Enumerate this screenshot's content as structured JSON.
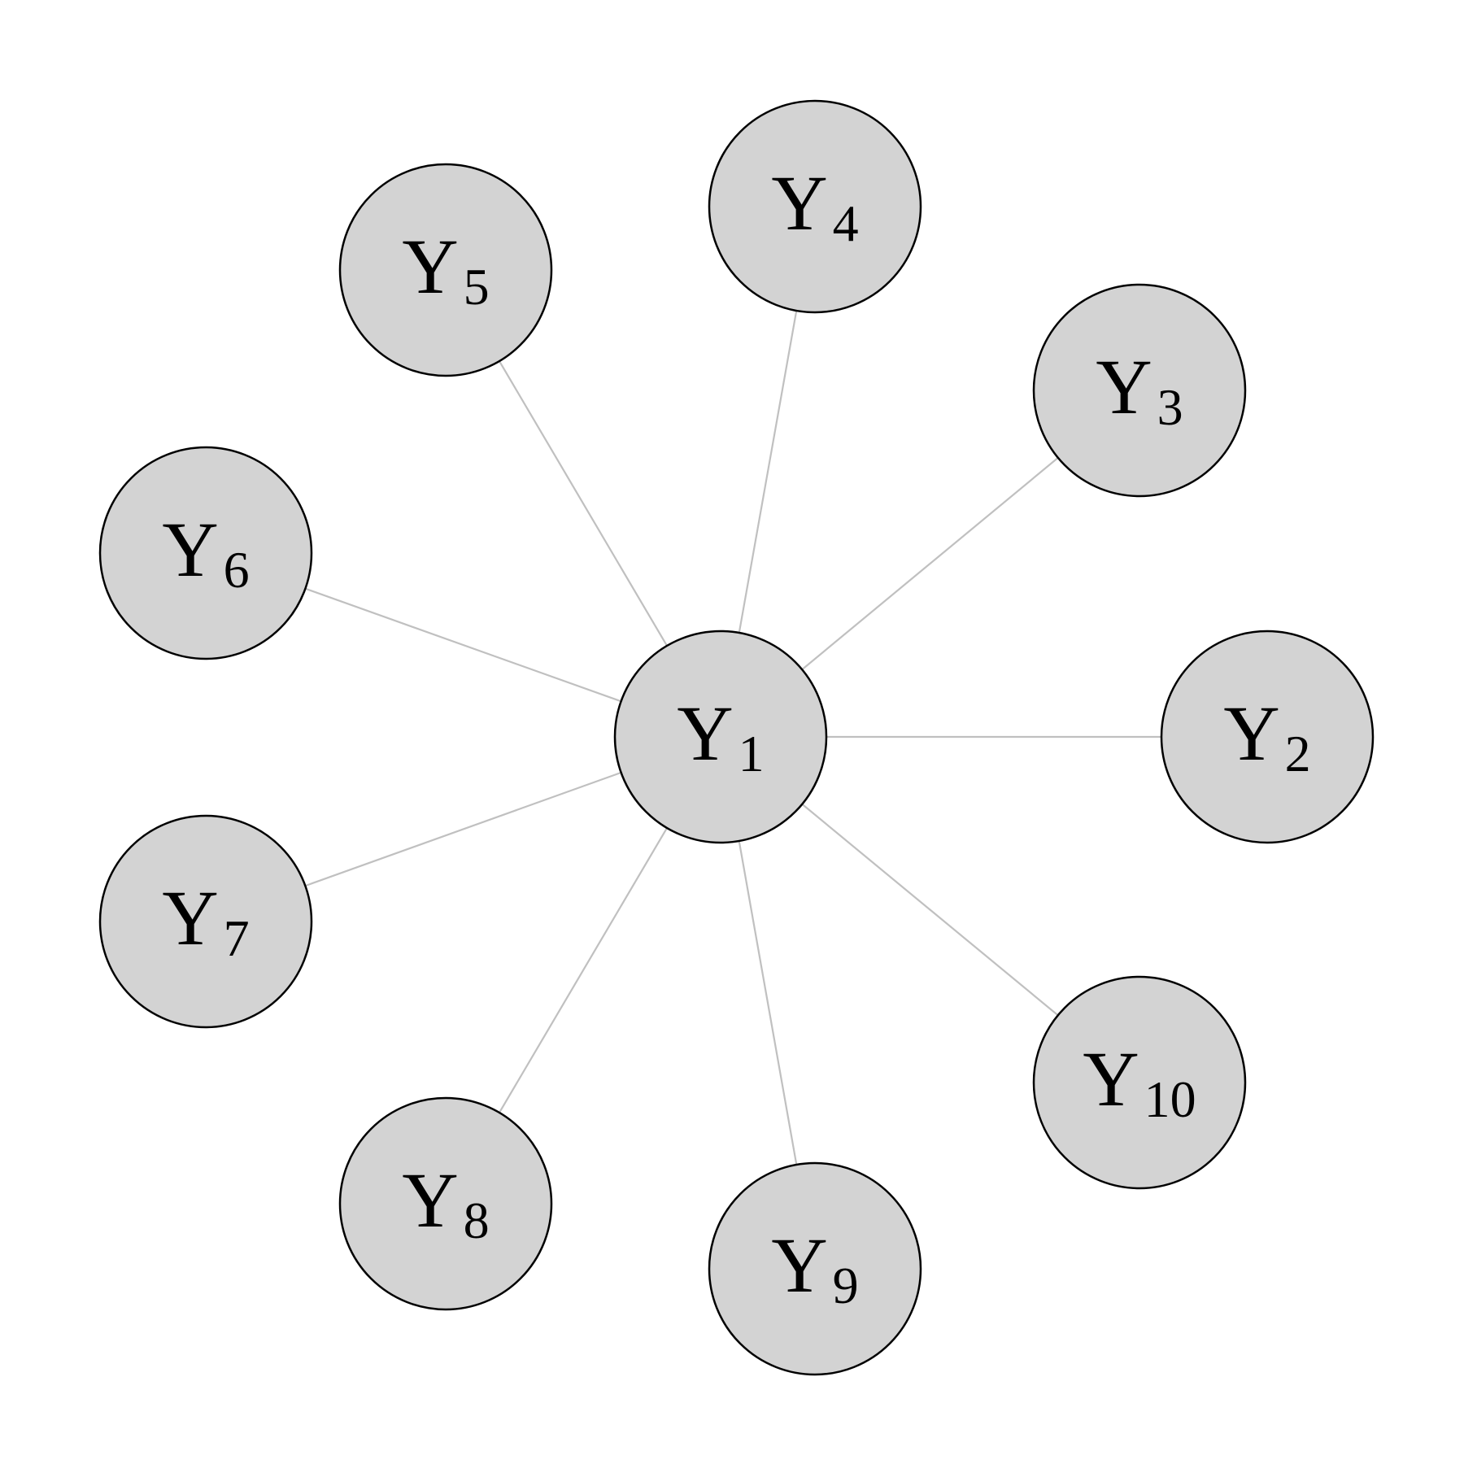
{
  "colors": {
    "node_fill": "#d3d3d3",
    "node_stroke": "#000000",
    "edge": "#c0c0c0",
    "background": "#ffffff"
  },
  "nodes": [
    {
      "id": "Y1",
      "letter": "Y",
      "subscript": "1"
    },
    {
      "id": "Y2",
      "letter": "Y",
      "subscript": "2"
    },
    {
      "id": "Y3",
      "letter": "Y",
      "subscript": "3"
    },
    {
      "id": "Y4",
      "letter": "Y",
      "subscript": "4"
    },
    {
      "id": "Y5",
      "letter": "Y",
      "subscript": "5"
    },
    {
      "id": "Y6",
      "letter": "Y",
      "subscript": "6"
    },
    {
      "id": "Y7",
      "letter": "Y",
      "subscript": "7"
    },
    {
      "id": "Y8",
      "letter": "Y",
      "subscript": "8"
    },
    {
      "id": "Y9",
      "letter": "Y",
      "subscript": "9"
    },
    {
      "id": "Y10",
      "letter": "Y",
      "subscript": "10"
    }
  ],
  "edges": [
    {
      "from": "Y1",
      "to": "Y2"
    },
    {
      "from": "Y1",
      "to": "Y3"
    },
    {
      "from": "Y1",
      "to": "Y4"
    },
    {
      "from": "Y1",
      "to": "Y5"
    },
    {
      "from": "Y1",
      "to": "Y6"
    },
    {
      "from": "Y1",
      "to": "Y7"
    },
    {
      "from": "Y1",
      "to": "Y8"
    },
    {
      "from": "Y1",
      "to": "Y9"
    },
    {
      "from": "Y1",
      "to": "Y10"
    }
  ]
}
